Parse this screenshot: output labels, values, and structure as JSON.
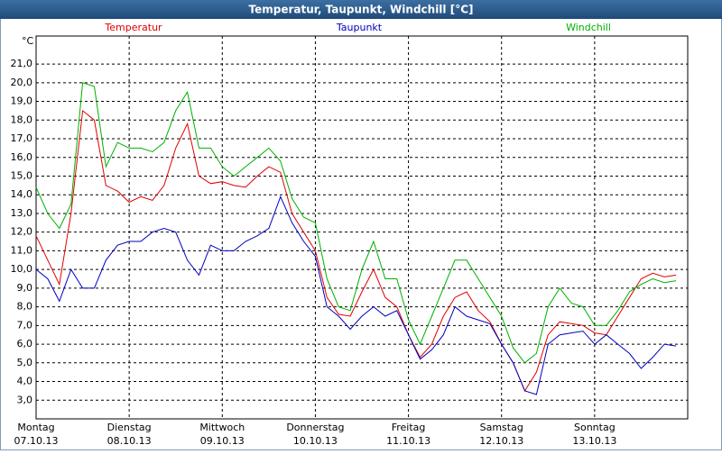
{
  "chart_data": {
    "type": "line",
    "title": "Temperatur, Taupunkt, Windchill [°C]",
    "y_label": "°C",
    "x": [
      0,
      0.125,
      0.25,
      0.375,
      0.5,
      0.625,
      0.75,
      0.875,
      1,
      1.125,
      1.25,
      1.375,
      1.5,
      1.625,
      1.75,
      1.875,
      2,
      2.125,
      2.25,
      2.375,
      2.5,
      2.625,
      2.75,
      2.875,
      3,
      3.125,
      3.25,
      3.375,
      3.5,
      3.625,
      3.75,
      3.875,
      4,
      4.125,
      4.25,
      4.375,
      4.5,
      4.625,
      4.75,
      4.875,
      5,
      5.125,
      5.25,
      5.375,
      5.5,
      5.625,
      5.75,
      5.875,
      6,
      6.125,
      6.25,
      6.375,
      6.5,
      6.625,
      6.75,
      6.875
    ],
    "xlim": [
      0,
      7
    ],
    "xticks": [
      {
        "value": 0,
        "label": "Montag"
      },
      {
        "value": 1,
        "label": "Dienstag"
      },
      {
        "value": 2,
        "label": "Mittwoch"
      },
      {
        "value": 3,
        "label": "Donnerstag"
      },
      {
        "value": 4,
        "label": "Freitag"
      },
      {
        "value": 5,
        "label": "Samstag"
      },
      {
        "value": 6,
        "label": "Sonntag"
      }
    ],
    "xtick_dates": [
      "07.10.13",
      "08.10.13",
      "09.10.13",
      "10.10.13",
      "11.10.13",
      "12.10.13",
      "13.10.13"
    ],
    "ylim": [
      2,
      22.5
    ],
    "yticks": [
      {
        "value": 3,
        "label": "3,0"
      },
      {
        "value": 4,
        "label": "4,0"
      },
      {
        "value": 5,
        "label": "5,0"
      },
      {
        "value": 6,
        "label": "6,0"
      },
      {
        "value": 7,
        "label": "7,0"
      },
      {
        "value": 8,
        "label": "8,0"
      },
      {
        "value": 9,
        "label": "9,0"
      },
      {
        "value": 10,
        "label": "10,0"
      },
      {
        "value": 11,
        "label": "11,0"
      },
      {
        "value": 12,
        "label": "12,0"
      },
      {
        "value": 13,
        "label": "13,0"
      },
      {
        "value": 14,
        "label": "14,0"
      },
      {
        "value": 15,
        "label": "15,0"
      },
      {
        "value": 16,
        "label": "16,0"
      },
      {
        "value": 17,
        "label": "17,0"
      },
      {
        "value": 18,
        "label": "18,0"
      },
      {
        "value": 19,
        "label": "19,0"
      },
      {
        "value": 20,
        "label": "20,0"
      },
      {
        "value": 21,
        "label": "21,0"
      }
    ],
    "grid": true,
    "series": [
      {
        "name": "Temperatur",
        "color": "#e00000",
        "values": [
          11.8,
          10.5,
          9.2,
          13,
          18.5,
          18,
          14.5,
          14.2,
          13.6,
          13.9,
          13.7,
          14.5,
          16.5,
          17.8,
          15,
          14.6,
          14.7,
          14.5,
          14.4,
          15,
          15.5,
          15.2,
          13,
          12,
          11,
          8.5,
          7.6,
          7.5,
          8.8,
          10,
          8.5,
          8,
          6.5,
          5.3,
          6,
          7.5,
          8.5,
          8.8,
          7.8,
          7.2,
          6,
          5,
          3.5,
          4.5,
          6.5,
          7.2,
          7.1,
          7,
          6.6,
          6.5,
          7.5,
          8.5,
          9.5,
          9.8,
          9.6,
          9.7
        ]
      },
      {
        "name": "Taupunkt",
        "color": "#0000c0",
        "values": [
          10,
          9.5,
          8.3,
          10,
          9,
          9,
          10.5,
          11.3,
          11.5,
          11.5,
          12,
          12.2,
          12,
          10.5,
          9.7,
          11.3,
          11,
          11,
          11.5,
          11.8,
          12.2,
          13.9,
          12.5,
          11.5,
          10.7,
          8,
          7.5,
          6.8,
          7.5,
          8,
          7.5,
          7.8,
          6.5,
          5.2,
          5.7,
          6.5,
          8,
          7.5,
          7.3,
          7.1,
          6,
          5,
          3.5,
          3.3,
          6,
          6.5,
          6.6,
          6.7,
          6,
          6.5,
          6,
          5.5,
          4.7,
          5.3,
          6,
          5.9
        ]
      },
      {
        "name": "Windchill",
        "color": "#00b000",
        "values": [
          14.4,
          13,
          12.2,
          13.5,
          20,
          19.8,
          15.5,
          16.8,
          16.5,
          16.5,
          16.3,
          16.8,
          18.5,
          19.5,
          16.5,
          16.5,
          15.5,
          15,
          15.5,
          16,
          16.5,
          15.8,
          13.8,
          12.8,
          12.5,
          9.5,
          8,
          7.8,
          10,
          11.5,
          9.5,
          9.5,
          7.3,
          6,
          7.5,
          9,
          10.5,
          10.5,
          9.5,
          8.5,
          7.5,
          5.8,
          5,
          5.5,
          8,
          9,
          8.2,
          8,
          7,
          7,
          7.8,
          8.8,
          9.2,
          9.5,
          9.3,
          9.4
        ]
      }
    ]
  }
}
